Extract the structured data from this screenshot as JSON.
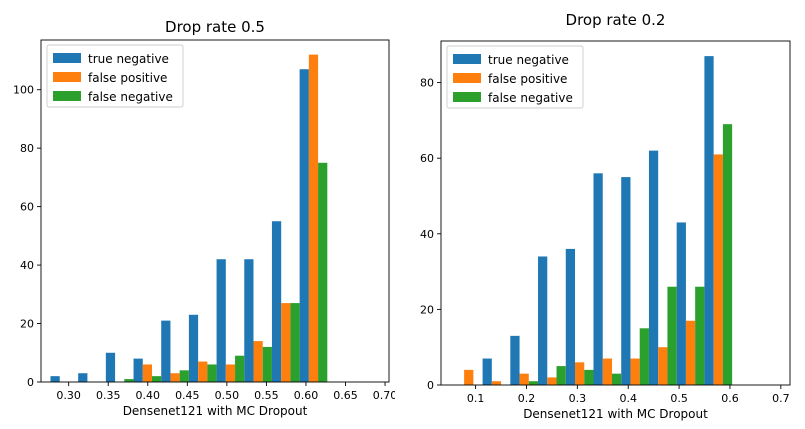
{
  "chart_data": [
    {
      "type": "bar",
      "title": "Drop rate 0.5",
      "xlabel": "Densenet121 with MC Dropout",
      "ylabel": "",
      "xlim": [
        0.265,
        0.705
      ],
      "ylim": [
        0,
        117
      ],
      "bin_width": 0.035,
      "bin_centers": [
        0.2945,
        0.3295,
        0.3645,
        0.3995,
        0.4345,
        0.4695,
        0.5045,
        0.5395,
        0.5745,
        0.6095,
        0.6445,
        0.6795
      ],
      "x_ticks": [
        0.3,
        0.35,
        0.4,
        0.45,
        0.5,
        0.55,
        0.6,
        0.65,
        0.7
      ],
      "x_tick_labels": [
        "0.30",
        "0.35",
        "0.40",
        "0.45",
        "0.50",
        "0.55",
        "0.60",
        "0.65",
        "0.70"
      ],
      "y_ticks": [
        0,
        20,
        40,
        60,
        80,
        100
      ],
      "y_tick_labels": [
        "0",
        "20",
        "40",
        "60",
        "80",
        "100"
      ],
      "legend_position": "top-left",
      "series": [
        {
          "name": "true negative",
          "color": "#1f77b4",
          "values": [
            2,
            3,
            10,
            8,
            21,
            23,
            42,
            42,
            55,
            107,
            0,
            0
          ]
        },
        {
          "name": "false positive",
          "color": "#ff7f0e",
          "values": [
            0,
            0,
            0,
            6,
            3,
            7,
            6,
            14,
            27,
            112,
            0,
            0
          ]
        },
        {
          "name": "false negative",
          "color": "#2ca02c",
          "values": [
            0,
            0,
            1,
            2,
            4,
            6,
            9,
            12,
            27,
            75,
            0,
            0
          ]
        }
      ]
    },
    {
      "type": "bar",
      "title": "Drop rate 0.2",
      "xlabel": "Densenet121 with MC Dropout",
      "ylabel": "",
      "xlim": [
        0.032,
        0.718
      ],
      "ylim": [
        0,
        91
      ],
      "bin_width": 0.0545,
      "bin_centers": [
        0.0865,
        0.141,
        0.1955,
        0.25,
        0.3045,
        0.359,
        0.4135,
        0.468,
        0.5225,
        0.577,
        0.6315,
        0.686
      ],
      "x_ticks": [
        0.1,
        0.2,
        0.3,
        0.4,
        0.5,
        0.6,
        0.7
      ],
      "x_tick_labels": [
        "0.1",
        "0.2",
        "0.3",
        "0.4",
        "0.5",
        "0.6",
        "0.7"
      ],
      "y_ticks": [
        0,
        20,
        40,
        60,
        80
      ],
      "y_tick_labels": [
        "0",
        "20",
        "40",
        "60",
        "80"
      ],
      "legend_position": "top-left",
      "series": [
        {
          "name": "true negative",
          "color": "#1f77b4",
          "values": [
            0,
            7,
            13,
            34,
            36,
            56,
            55,
            62,
            43,
            87,
            0,
            0
          ]
        },
        {
          "name": "false positive",
          "color": "#ff7f0e",
          "values": [
            4,
            1,
            3,
            2,
            6,
            7,
            7,
            10,
            17,
            61,
            0,
            0
          ]
        },
        {
          "name": "false negative",
          "color": "#2ca02c",
          "values": [
            0,
            0,
            1,
            5,
            4,
            3,
            15,
            26,
            26,
            69,
            0,
            0
          ]
        }
      ]
    }
  ]
}
